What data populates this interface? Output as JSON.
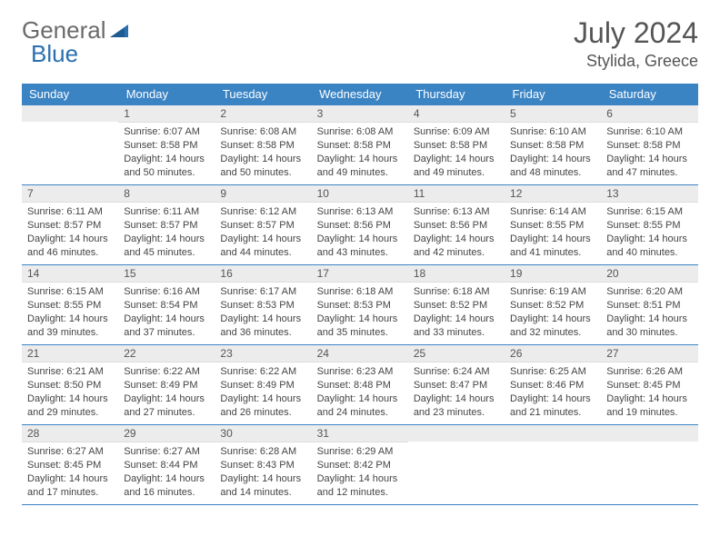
{
  "logo": {
    "text_part1": "General",
    "text_part2": "Blue",
    "color_gray": "#6b6b6b",
    "color_blue": "#2b6fb0"
  },
  "header": {
    "month_title": "July 2024",
    "location": "Stylida, Greece"
  },
  "styling": {
    "header_blue": "#3b84c4",
    "day_bar_gray": "#ececec",
    "text_color": "#444444",
    "border_color": "#3b84c4",
    "background": "#ffffff",
    "day_font_size": 11,
    "header_font_size": 13,
    "title_font_size": 32,
    "location_font_size": 18
  },
  "weekdays": [
    "Sunday",
    "Monday",
    "Tuesday",
    "Wednesday",
    "Thursday",
    "Friday",
    "Saturday"
  ],
  "calendar": {
    "first_weekday_index": 1,
    "num_days": 31,
    "days": [
      {
        "n": 1,
        "sunrise": "6:07 AM",
        "sunset": "8:58 PM",
        "daylight": "14 hours and 50 minutes."
      },
      {
        "n": 2,
        "sunrise": "6:08 AM",
        "sunset": "8:58 PM",
        "daylight": "14 hours and 50 minutes."
      },
      {
        "n": 3,
        "sunrise": "6:08 AM",
        "sunset": "8:58 PM",
        "daylight": "14 hours and 49 minutes."
      },
      {
        "n": 4,
        "sunrise": "6:09 AM",
        "sunset": "8:58 PM",
        "daylight": "14 hours and 49 minutes."
      },
      {
        "n": 5,
        "sunrise": "6:10 AM",
        "sunset": "8:58 PM",
        "daylight": "14 hours and 48 minutes."
      },
      {
        "n": 6,
        "sunrise": "6:10 AM",
        "sunset": "8:58 PM",
        "daylight": "14 hours and 47 minutes."
      },
      {
        "n": 7,
        "sunrise": "6:11 AM",
        "sunset": "8:57 PM",
        "daylight": "14 hours and 46 minutes."
      },
      {
        "n": 8,
        "sunrise": "6:11 AM",
        "sunset": "8:57 PM",
        "daylight": "14 hours and 45 minutes."
      },
      {
        "n": 9,
        "sunrise": "6:12 AM",
        "sunset": "8:57 PM",
        "daylight": "14 hours and 44 minutes."
      },
      {
        "n": 10,
        "sunrise": "6:13 AM",
        "sunset": "8:56 PM",
        "daylight": "14 hours and 43 minutes."
      },
      {
        "n": 11,
        "sunrise": "6:13 AM",
        "sunset": "8:56 PM",
        "daylight": "14 hours and 42 minutes."
      },
      {
        "n": 12,
        "sunrise": "6:14 AM",
        "sunset": "8:55 PM",
        "daylight": "14 hours and 41 minutes."
      },
      {
        "n": 13,
        "sunrise": "6:15 AM",
        "sunset": "8:55 PM",
        "daylight": "14 hours and 40 minutes."
      },
      {
        "n": 14,
        "sunrise": "6:15 AM",
        "sunset": "8:55 PM",
        "daylight": "14 hours and 39 minutes."
      },
      {
        "n": 15,
        "sunrise": "6:16 AM",
        "sunset": "8:54 PM",
        "daylight": "14 hours and 37 minutes."
      },
      {
        "n": 16,
        "sunrise": "6:17 AM",
        "sunset": "8:53 PM",
        "daylight": "14 hours and 36 minutes."
      },
      {
        "n": 17,
        "sunrise": "6:18 AM",
        "sunset": "8:53 PM",
        "daylight": "14 hours and 35 minutes."
      },
      {
        "n": 18,
        "sunrise": "6:18 AM",
        "sunset": "8:52 PM",
        "daylight": "14 hours and 33 minutes."
      },
      {
        "n": 19,
        "sunrise": "6:19 AM",
        "sunset": "8:52 PM",
        "daylight": "14 hours and 32 minutes."
      },
      {
        "n": 20,
        "sunrise": "6:20 AM",
        "sunset": "8:51 PM",
        "daylight": "14 hours and 30 minutes."
      },
      {
        "n": 21,
        "sunrise": "6:21 AM",
        "sunset": "8:50 PM",
        "daylight": "14 hours and 29 minutes."
      },
      {
        "n": 22,
        "sunrise": "6:22 AM",
        "sunset": "8:49 PM",
        "daylight": "14 hours and 27 minutes."
      },
      {
        "n": 23,
        "sunrise": "6:22 AM",
        "sunset": "8:49 PM",
        "daylight": "14 hours and 26 minutes."
      },
      {
        "n": 24,
        "sunrise": "6:23 AM",
        "sunset": "8:48 PM",
        "daylight": "14 hours and 24 minutes."
      },
      {
        "n": 25,
        "sunrise": "6:24 AM",
        "sunset": "8:47 PM",
        "daylight": "14 hours and 23 minutes."
      },
      {
        "n": 26,
        "sunrise": "6:25 AM",
        "sunset": "8:46 PM",
        "daylight": "14 hours and 21 minutes."
      },
      {
        "n": 27,
        "sunrise": "6:26 AM",
        "sunset": "8:45 PM",
        "daylight": "14 hours and 19 minutes."
      },
      {
        "n": 28,
        "sunrise": "6:27 AM",
        "sunset": "8:45 PM",
        "daylight": "14 hours and 17 minutes."
      },
      {
        "n": 29,
        "sunrise": "6:27 AM",
        "sunset": "8:44 PM",
        "daylight": "14 hours and 16 minutes."
      },
      {
        "n": 30,
        "sunrise": "6:28 AM",
        "sunset": "8:43 PM",
        "daylight": "14 hours and 14 minutes."
      },
      {
        "n": 31,
        "sunrise": "6:29 AM",
        "sunset": "8:42 PM",
        "daylight": "14 hours and 12 minutes."
      }
    ]
  },
  "labels": {
    "sunrise_prefix": "Sunrise: ",
    "sunset_prefix": "Sunset: ",
    "daylight_prefix": "Daylight: "
  }
}
